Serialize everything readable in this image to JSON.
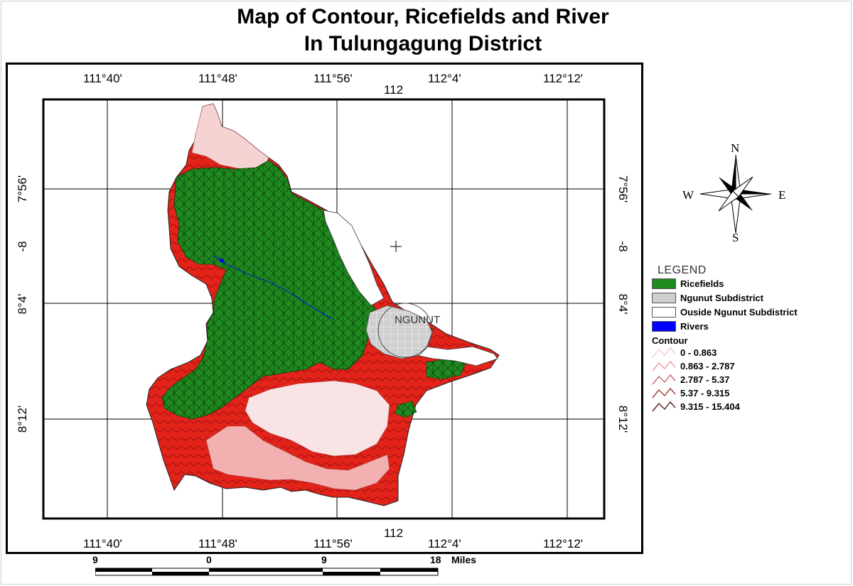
{
  "title": {
    "line1": "Map of Contour, Ricefields and River",
    "line2": "In Tulungagung District"
  },
  "grid_labels": {
    "top": [
      "111°40'",
      "111°48'",
      "111°56'",
      "112°4'",
      "112°12'"
    ],
    "top_mid": "112",
    "bottom": [
      "111°40'",
      "111°48'",
      "111°56'",
      "112°4'",
      "112°12'"
    ],
    "bottom_mid": "112",
    "left": [
      "7°56'",
      "-8",
      "8°4'",
      "8°12'"
    ],
    "right": [
      "7°56'",
      "-8",
      "8°4'",
      "8°12'"
    ]
  },
  "map": {
    "place_label": "NGUNUT",
    "colors": {
      "ricefields": "#1f8a1f",
      "ngunut": "#cfcfcf",
      "outside": "#ffffff",
      "rivers": "#0000ff",
      "contour_low": "#f7dede",
      "contour_mid": "#f0a0a0",
      "contour_high": "#e2231a",
      "contour_max": "#c4161c"
    }
  },
  "compass": {
    "n": "N",
    "s": "S",
    "e": "E",
    "w": "W"
  },
  "legend": {
    "title": "LEGEND",
    "items": [
      {
        "label": "Ricefields",
        "color": "#1f8a1f"
      },
      {
        "label": "Ngunut Subdistrict",
        "color": "#cfcfcf"
      },
      {
        "label": "Ouside Ngunut Subdistrict",
        "color": "#ffffff"
      },
      {
        "label": "Rivers",
        "color": "#0000ff"
      }
    ],
    "contour_title": "Contour",
    "contour_items": [
      {
        "label": "0 - 0.863",
        "color": "#f3c8c8"
      },
      {
        "label": "0.863 - 2.787",
        "color": "#e79a9a"
      },
      {
        "label": "2.787 - 5.37",
        "color": "#c86464"
      },
      {
        "label": "5.37 - 9.315",
        "color": "#9a3a3a"
      },
      {
        "label": "9.315 - 15.404",
        "color": "#5a1a1a"
      }
    ]
  },
  "scale_bar": {
    "labels": [
      "9",
      "0",
      "9",
      "18"
    ],
    "unit": "Miles"
  }
}
